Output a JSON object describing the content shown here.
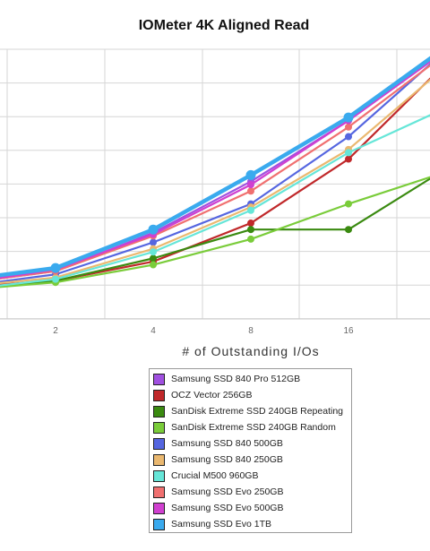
{
  "chart_data": {
    "type": "line",
    "title": "IOMeter 4K Aligned Read",
    "xlabel": "# of Outstanding I/Os",
    "ylabel": "",
    "x_ticks": [
      "1",
      "2",
      "4",
      "8",
      "16",
      "32"
    ],
    "x_tick_labels_visible": [
      "2",
      "4",
      "8",
      "16"
    ],
    "grid": true,
    "legend_position": "bottom",
    "series": [
      {
        "name": "Samsung SSD 840 Pro 512GB",
        "color": "#a050e0",
        "values": [
          7,
          11,
          23,
          39,
          58,
          81
        ]
      },
      {
        "name": "OCZ Vector 256GB",
        "color": "#c0282a",
        "values": [
          6,
          8,
          14,
          26,
          46,
          76
        ]
      },
      {
        "name": "SanDisk Extreme SSD 240GB Repeating",
        "color": "#3a8a10",
        "values": [
          5,
          8,
          15,
          24,
          24,
          43
        ]
      },
      {
        "name": "SanDisk Extreme SSD 240GB Random",
        "color": "#7acc3a",
        "values": [
          5,
          7.5,
          13,
          21,
          32,
          42
        ]
      },
      {
        "name": "Samsung SSD 840 500GB",
        "color": "#5566e0",
        "values": [
          6,
          10,
          20,
          32,
          53,
          80
        ]
      },
      {
        "name": "Samsung SSD 840 250GB",
        "color": "#eab870",
        "values": [
          6,
          9,
          18,
          31,
          49,
          75
        ]
      },
      {
        "name": "Crucial M500 960GB",
        "color": "#66e6d8",
        "values": [
          5,
          8.5,
          17,
          30,
          48,
          62
        ]
      },
      {
        "name": "Samsung SSD Evo 250GB",
        "color": "#f07070",
        "values": [
          7,
          11,
          22,
          36,
          56,
          79
        ]
      },
      {
        "name": "Samsung SSD Evo 500GB",
        "color": "#d040d0",
        "values": [
          7,
          11.5,
          22.5,
          38,
          58,
          80
        ]
      },
      {
        "name": "Samsung SSD Evo 1TB",
        "color": "#3aaaee",
        "values": [
          8,
          12,
          24,
          41,
          59,
          81
        ]
      }
    ]
  }
}
